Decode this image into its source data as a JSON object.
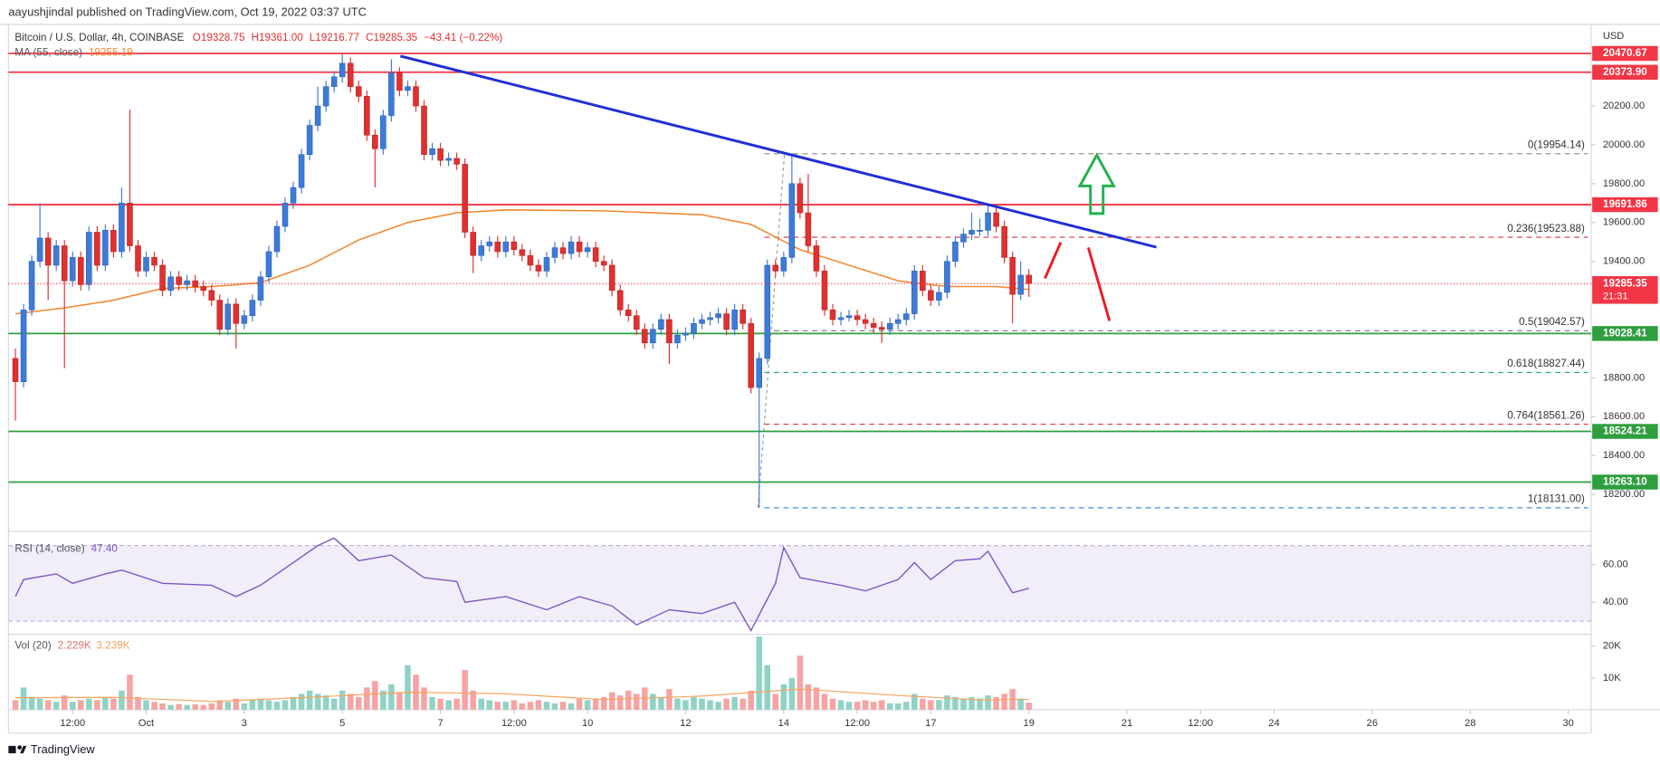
{
  "header": {
    "attribution": "aayushjindal published on TradingView.com, Oct 19, 2022 03:37 UTC",
    "footer": "TradingView"
  },
  "chart_data": {
    "type": "candlestick",
    "title": "Bitcoin / U.S. Dollar, 4h, COINBASE",
    "ohlc_legend": [
      "O19328.75",
      "H19361.00",
      "L19216.77",
      "C19285.35",
      "−43.41 (−0.22%)"
    ],
    "currency": "USD",
    "up_color": "#3d7bd9",
    "down_color": "#e0302f",
    "ohlc": [
      [
        18900,
        18950,
        18580,
        18780
      ],
      [
        18780,
        19180,
        18750,
        19150
      ],
      [
        19150,
        19430,
        19120,
        19400
      ],
      [
        19400,
        19700,
        19370,
        19520
      ],
      [
        19520,
        19550,
        19200,
        19380
      ],
      [
        19380,
        19510,
        19350,
        19480
      ],
      [
        19480,
        19510,
        18850,
        19300
      ],
      [
        19300,
        19450,
        19270,
        19420
      ],
      [
        19420,
        19450,
        19250,
        19280
      ],
      [
        19280,
        19580,
        19250,
        19550
      ],
      [
        19550,
        19580,
        19350,
        19380
      ],
      [
        19380,
        19590,
        19350,
        19560
      ],
      [
        19560,
        19590,
        19420,
        19450
      ],
      [
        19450,
        19780,
        19420,
        19700
      ],
      [
        19700,
        20180,
        19450,
        19480
      ],
      [
        19480,
        19510,
        19320,
        19350
      ],
      [
        19350,
        19450,
        19320,
        19420
      ],
      [
        19420,
        19450,
        19350,
        19380
      ],
      [
        19380,
        19410,
        19220,
        19250
      ],
      [
        19250,
        19350,
        19220,
        19320
      ],
      [
        19320,
        19350,
        19250,
        19280
      ],
      [
        19280,
        19330,
        19250,
        19300
      ],
      [
        19300,
        19330,
        19240,
        19270
      ],
      [
        19270,
        19300,
        19220,
        19250
      ],
      [
        19250,
        19280,
        19170,
        19200
      ],
      [
        19200,
        19230,
        19020,
        19050
      ],
      [
        19050,
        19210,
        19020,
        19180
      ],
      [
        19180,
        19210,
        18950,
        19080
      ],
      [
        19080,
        19150,
        19050,
        19120
      ],
      [
        19120,
        19230,
        19090,
        19200
      ],
      [
        19200,
        19350,
        19170,
        19320
      ],
      [
        19320,
        19480,
        19290,
        19450
      ],
      [
        19450,
        19610,
        19420,
        19580
      ],
      [
        19580,
        19730,
        19550,
        19700
      ],
      [
        19700,
        19810,
        19670,
        19780
      ],
      [
        19780,
        19980,
        19750,
        19950
      ],
      [
        19950,
        20130,
        19920,
        20100
      ],
      [
        20100,
        20300,
        20070,
        20200
      ],
      [
        20200,
        20330,
        20170,
        20300
      ],
      [
        20300,
        20380,
        20270,
        20350
      ],
      [
        20350,
        20470,
        20320,
        20420
      ],
      [
        20420,
        20450,
        20270,
        20300
      ],
      [
        20300,
        20330,
        20220,
        20250
      ],
      [
        20250,
        20280,
        20020,
        20050
      ],
      [
        20050,
        20080,
        19780,
        19980
      ],
      [
        19980,
        20180,
        19950,
        20150
      ],
      [
        20150,
        20440,
        20120,
        20370
      ],
      [
        20370,
        20400,
        20250,
        20280
      ],
      [
        20280,
        20330,
        20250,
        20300
      ],
      [
        20300,
        20330,
        20170,
        20200
      ],
      [
        20200,
        20230,
        19920,
        19950
      ],
      [
        19950,
        20010,
        19920,
        19980
      ],
      [
        19980,
        20010,
        19890,
        19920
      ],
      [
        19920,
        19960,
        19890,
        19930
      ],
      [
        19930,
        19960,
        19870,
        19900
      ],
      [
        19900,
        19930,
        19520,
        19550
      ],
      [
        19550,
        19580,
        19340,
        19430
      ],
      [
        19430,
        19510,
        19400,
        19480
      ],
      [
        19480,
        19530,
        19450,
        19500
      ],
      [
        19500,
        19530,
        19420,
        19450
      ],
      [
        19450,
        19530,
        19420,
        19500
      ],
      [
        19500,
        19530,
        19430,
        19460
      ],
      [
        19460,
        19490,
        19400,
        19430
      ],
      [
        19430,
        19460,
        19350,
        19380
      ],
      [
        19380,
        19410,
        19320,
        19350
      ],
      [
        19350,
        19450,
        19320,
        19420
      ],
      [
        19420,
        19500,
        19390,
        19470
      ],
      [
        19470,
        19500,
        19410,
        19440
      ],
      [
        19440,
        19530,
        19410,
        19500
      ],
      [
        19500,
        19530,
        19420,
        19450
      ],
      [
        19450,
        19500,
        19420,
        19470
      ],
      [
        19470,
        19500,
        19370,
        19400
      ],
      [
        19400,
        19430,
        19350,
        19380
      ],
      [
        19380,
        19410,
        19220,
        19250
      ],
      [
        19250,
        19280,
        19120,
        19150
      ],
      [
        19150,
        19180,
        19090,
        19120
      ],
      [
        19120,
        19150,
        19020,
        19050
      ],
      [
        19050,
        19080,
        18950,
        18980
      ],
      [
        18980,
        19080,
        18950,
        19050
      ],
      [
        19050,
        19130,
        19020,
        19100
      ],
      [
        19100,
        19130,
        18870,
        18980
      ],
      [
        18980,
        19050,
        18950,
        19020
      ],
      [
        19020,
        19060,
        18990,
        19030
      ],
      [
        19030,
        19110,
        19000,
        19080
      ],
      [
        19080,
        19130,
        19050,
        19100
      ],
      [
        19100,
        19140,
        19070,
        19110
      ],
      [
        19110,
        19160,
        19080,
        19130
      ],
      [
        19130,
        19160,
        19020,
        19050
      ],
      [
        19050,
        19180,
        19020,
        19150
      ],
      [
        19150,
        19180,
        19050,
        19080
      ],
      [
        19080,
        19110,
        18720,
        18750
      ],
      [
        18750,
        18930,
        18131,
        18900
      ],
      [
        18900,
        19410,
        18870,
        19380
      ],
      [
        19380,
        19410,
        19320,
        19350
      ],
      [
        19350,
        19450,
        19320,
        19420
      ],
      [
        19420,
        19954.14,
        19390,
        19800
      ],
      [
        19800,
        19830,
        19620,
        19650
      ],
      [
        19650,
        19850,
        19450,
        19480
      ],
      [
        19480,
        19510,
        19320,
        19350
      ],
      [
        19350,
        19380,
        19120,
        19150
      ],
      [
        19150,
        19180,
        19070,
        19100
      ],
      [
        19100,
        19140,
        19070,
        19110
      ],
      [
        19110,
        19150,
        19090,
        19120
      ],
      [
        19120,
        19150,
        19070,
        19100
      ],
      [
        19100,
        19130,
        19050,
        19080
      ],
      [
        19080,
        19110,
        19030,
        19060
      ],
      [
        19060,
        19090,
        18980,
        19050
      ],
      [
        19050,
        19110,
        19020,
        19080
      ],
      [
        19080,
        19130,
        19050,
        19100
      ],
      [
        19100,
        19160,
        19070,
        19130
      ],
      [
        19130,
        19380,
        19100,
        19350
      ],
      [
        19350,
        19380,
        19220,
        19250
      ],
      [
        19250,
        19280,
        19170,
        19200
      ],
      [
        19200,
        19270,
        19170,
        19240
      ],
      [
        19240,
        19430,
        19210,
        19400
      ],
      [
        19400,
        19530,
        19370,
        19500
      ],
      [
        19500,
        19570,
        19470,
        19540
      ],
      [
        19540,
        19650,
        19510,
        19560
      ],
      [
        19560,
        19620,
        19530,
        19560
      ],
      [
        19560,
        19690,
        19530,
        19650
      ],
      [
        19650,
        19680,
        19550,
        19580
      ],
      [
        19580,
        19610,
        19390,
        19420
      ],
      [
        19420,
        19450,
        19080,
        19230
      ],
      [
        19230,
        19400,
        19200,
        19328.75
      ],
      [
        19328.75,
        19361,
        19216.77,
        19285.35
      ]
    ],
    "xlim": [
      -0.85,
      192.8
    ],
    "xticks": [
      {
        "value": 7,
        "label": "12:00"
      },
      {
        "value": 16,
        "label": "Oct"
      },
      {
        "value": 28,
        "label": "3"
      },
      {
        "value": 40,
        "label": "5"
      },
      {
        "value": 52,
        "label": "7"
      },
      {
        "value": 61,
        "label": "12:00"
      },
      {
        "value": 70,
        "label": "10"
      },
      {
        "value": 82,
        "label": "12"
      },
      {
        "value": 94,
        "label": "14"
      },
      {
        "value": 103,
        "label": "12:00"
      },
      {
        "value": 112,
        "label": "17"
      },
      {
        "value": 124,
        "label": "19"
      },
      {
        "value": 136,
        "label": "21"
      },
      {
        "value": 145,
        "label": "12:00"
      },
      {
        "value": 154,
        "label": "24"
      },
      {
        "value": 166,
        "label": "26"
      },
      {
        "value": 178,
        "label": "28"
      },
      {
        "value": 190,
        "label": "30"
      }
    ],
    "ylim": [
      18010,
      20620
    ],
    "yticks": [
      {
        "value": 20200,
        "label": "20200.00"
      },
      {
        "value": 20000,
        "label": "20000.00"
      },
      {
        "value": 19800,
        "label": "19800.00"
      },
      {
        "value": 19600,
        "label": "19600.00"
      },
      {
        "value": 19400,
        "label": "19400.00"
      },
      {
        "value": 18800,
        "label": "18800.00"
      },
      {
        "value": 18600,
        "label": "18600.00"
      },
      {
        "value": 18400,
        "label": "18400.00"
      },
      {
        "value": 18200,
        "label": "18200.00"
      }
    ],
    "ma": {
      "name": "MA (55, close)",
      "color": "#f0862d",
      "x": [
        0,
        6,
        12,
        18,
        24,
        30,
        36,
        42,
        48,
        54,
        60,
        72,
        84,
        90,
        96,
        102,
        108,
        114,
        120,
        124
      ],
      "values": [
        19130,
        19160,
        19200,
        19260,
        19270,
        19290,
        19380,
        19510,
        19600,
        19650,
        19665,
        19660,
        19640,
        19590,
        19460,
        19380,
        19300,
        19270,
        19270,
        19255.19
      ]
    },
    "levels": [
      {
        "value": 20470.67,
        "label": "20470.67",
        "color": "#f23645"
      },
      {
        "value": 20373.9,
        "label": "20373.90",
        "color": "#f23645"
      },
      {
        "value": 19691.86,
        "label": "19691.86",
        "color": "#f23645"
      },
      {
        "value": 19028.41,
        "label": "19028.41",
        "color": "#2e9e3f"
      },
      {
        "value": 18524.21,
        "label": "18524.21",
        "color": "#2e9e3f"
      },
      {
        "value": 18263.1,
        "label": "18263.10",
        "color": "#2e9e3f"
      }
    ],
    "current_color": "#f23645",
    "countdown": "21:31",
    "fib": [
      {
        "value": 19954.14,
        "label": "0(19954.14)",
        "color": "#888888"
      },
      {
        "value": 19523.88,
        "label": "0.236(19523.88)",
        "color": "#e0303a"
      },
      {
        "value": 19042.57,
        "label": "0.5(19042.57)",
        "color": "#787878"
      },
      {
        "value": 18827.44,
        "label": "0.618(18827.44)",
        "color": "#1aa88a"
      },
      {
        "value": 18561.26,
        "label": "0.764(18561.26)",
        "color": "#e0303a"
      },
      {
        "value": 18131.0,
        "label": "1(18131.00)",
        "color": "#3c8fe0"
      }
    ],
    "trendline": {
      "color": "#1f2fd4",
      "x": [
        47.1,
        139.6
      ],
      "values": [
        20457,
        19473
      ]
    },
    "rsi": {
      "name": "RSI (14, close)",
      "legend_label": "47.40",
      "color": "#7e57c2",
      "x": [
        0,
        1,
        5,
        7,
        11,
        13,
        18,
        24,
        27,
        30,
        33,
        37,
        39,
        42,
        46,
        50,
        54,
        55,
        60,
        65,
        69,
        73,
        76,
        80,
        84,
        88,
        90,
        93,
        94,
        96,
        101,
        104,
        108,
        110,
        112,
        115,
        118,
        119,
        122,
        124
      ],
      "values": [
        43,
        52,
        55,
        50,
        55,
        57,
        50,
        49,
        43,
        49,
        58,
        70,
        74,
        62,
        65,
        53,
        51,
        40,
        43,
        36,
        43,
        38,
        28,
        36,
        34,
        40,
        25,
        50,
        69,
        53,
        49,
        46,
        52,
        61,
        52,
        62,
        63,
        67,
        45,
        47.4
      ],
      "ylim": [
        23,
        77.6
      ],
      "yticks": [
        {
          "value": 60,
          "label": "60.00"
        },
        {
          "value": 40,
          "label": "40.00"
        }
      ],
      "band": [
        30,
        70
      ]
    },
    "volume": {
      "name": "Vol (20)",
      "legend_label": "2.229K",
      "up_color": "#8fd2c6",
      "down_color": "#f5a3a3",
      "values": [
        3000,
        7000,
        4000,
        3500,
        3000,
        2500,
        4500,
        2500,
        3000,
        3500,
        3000,
        4000,
        3500,
        6000,
        11000,
        4000,
        3000,
        2500,
        2000,
        1500,
        1800,
        1500,
        1700,
        1500,
        2000,
        3000,
        2500,
        3500,
        2000,
        3000,
        3500,
        3000,
        2500,
        3000,
        4000,
        5000,
        6000,
        5000,
        4500,
        3500,
        6000,
        5000,
        4000,
        7000,
        9000,
        6000,
        8000,
        5500,
        14000,
        11000,
        7000,
        4000,
        3500,
        3000,
        3500,
        12500,
        6000,
        3500,
        3000,
        2500,
        2500,
        3000,
        2000,
        2500,
        3000,
        2500,
        2000,
        2500,
        2000,
        3500,
        3000,
        3500,
        4000,
        5500,
        4500,
        6000,
        5000,
        7000,
        5000,
        4000,
        6500,
        3500,
        3000,
        4000,
        3500,
        3000,
        2500,
        3500,
        4000,
        3500,
        6000,
        23000,
        14000,
        5000,
        8000,
        10000,
        17000,
        8000,
        7000,
        5000,
        3500,
        3000,
        2500,
        2500,
        3000,
        2500,
        3000,
        2000,
        2000,
        2500,
        5000,
        3500,
        3000,
        3000,
        4500,
        4000,
        3500,
        4000,
        3500,
        4500,
        4000,
        5000,
        6500,
        3500,
        2229
      ],
      "ma": {
        "legend_label": "3.239K",
        "color": "#f7a35c",
        "x": [
          0,
          12,
          24,
          36,
          48,
          60,
          72,
          84,
          96,
          108,
          118,
          124
        ],
        "values": [
          3800,
          3900,
          2600,
          3900,
          5500,
          5000,
          3200,
          4300,
          6500,
          4500,
          3100,
          3239
        ]
      },
      "ylim": [
        0,
        23700
      ],
      "yticks": [
        {
          "value": 20000,
          "label": "20K"
        },
        {
          "value": 10000,
          "label": "10K"
        }
      ]
    }
  }
}
